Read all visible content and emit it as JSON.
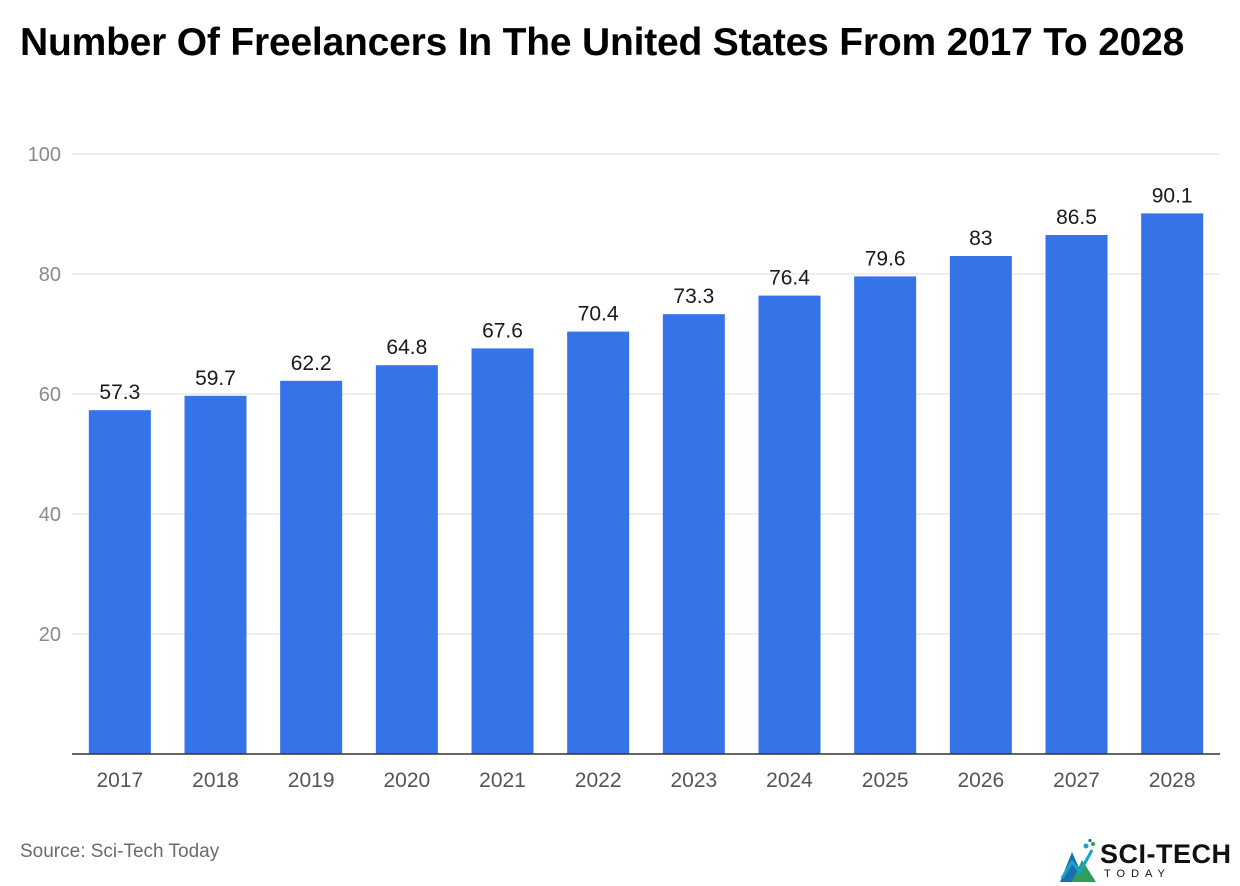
{
  "chart_data": {
    "type": "bar",
    "title": "Number Of Freelancers In The United States From 2017 To 2028",
    "categories": [
      "2017",
      "2018",
      "2019",
      "2020",
      "2021",
      "2022",
      "2023",
      "2024",
      "2025",
      "2026",
      "2027",
      "2028"
    ],
    "values": [
      57.3,
      59.7,
      62.2,
      64.8,
      67.6,
      70.4,
      73.3,
      76.4,
      79.6,
      83,
      86.5,
      90.1
    ],
    "data_labels": [
      "57.3",
      "59.7",
      "62.2",
      "64.8",
      "67.6",
      "70.4",
      "73.3",
      "76.4",
      "79.6",
      "83",
      "86.5",
      "90.1"
    ],
    "xlabel": "",
    "ylabel": "",
    "ylim": [
      0,
      100
    ],
    "yticks": [
      20,
      40,
      60,
      80,
      100
    ],
    "grid": true,
    "legend": "none",
    "bar_color": "#3474e8",
    "gridline_color": "#e3e3e3",
    "axis_color": "#333333",
    "tick_label_color": "#8a8a8a",
    "category_label_color": "#555555",
    "data_label_color": "#1a1a1a"
  },
  "footer": {
    "source": "Source: Sci-Tech Today",
    "logo_text": "SCI-TECH",
    "logo_subtext": "TODAY",
    "logo_colors": [
      "#1aa3c9",
      "#2f9e5b",
      "#1a6fb0"
    ]
  }
}
